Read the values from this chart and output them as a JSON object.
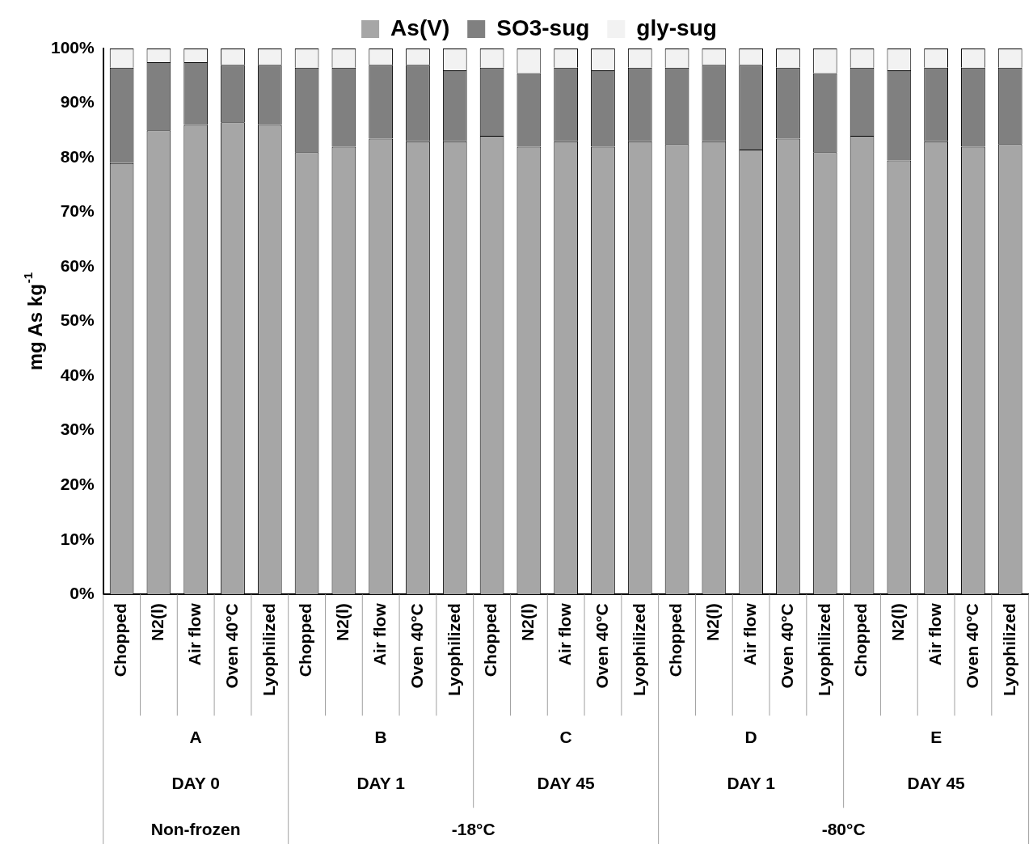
{
  "chart_data": {
    "type": "bar",
    "stacked": true,
    "ylabel": "mg As kg$^{-1}$",
    "categories": [
      "Chopped",
      "N2(l)",
      "Air flow",
      "Oven 40°C",
      "Lyophilized",
      "Chopped",
      "N2(l)",
      "Air flow",
      "Oven 40°C",
      "Lyophilized",
      "Chopped",
      "N2(l)",
      "Air flow",
      "Oven 40°C",
      "Lyophilized",
      "Chopped",
      "N2(l)",
      "Air flow",
      "Oven 40°C",
      "Lyophilized",
      "Chopped",
      "N2(l)",
      "Air flow",
      "Oven 40°C",
      "Lyophilized"
    ],
    "series": [
      {
        "name": "As(V)",
        "color": "#a6a6a6",
        "values": [
          79,
          85,
          86,
          86.5,
          86,
          81,
          82,
          83.5,
          83,
          83,
          84,
          82,
          83,
          82,
          83,
          82.5,
          83,
          81.5,
          83.5,
          81,
          84,
          79.5,
          83,
          82,
          82.5
        ]
      },
      {
        "name": "SO3-sug",
        "color": "#808080",
        "values": [
          17.5,
          12.5,
          11.5,
          10.5,
          11,
          15.5,
          14.5,
          13.5,
          14,
          13,
          12.5,
          13.5,
          13.5,
          14,
          13.5,
          14,
          14,
          15.5,
          13,
          14.5,
          12.5,
          16.5,
          13.5,
          14.5,
          14
        ]
      },
      {
        "name": "gly-sug",
        "color": "#f2f2f2",
        "values": [
          3.5,
          2.5,
          2.5,
          3,
          3,
          3.5,
          3.5,
          3,
          3,
          4,
          3.5,
          4.5,
          3.5,
          4,
          3.5,
          3.5,
          3,
          3,
          3.5,
          4.5,
          3.5,
          4,
          3.5,
          3.5,
          3.5
        ]
      }
    ],
    "ylim": [
      0,
      100
    ],
    "yticks": [
      {
        "value": 0,
        "label": "0%"
      },
      {
        "value": 10,
        "label": "10%"
      },
      {
        "value": 20,
        "label": "20%"
      },
      {
        "value": 30,
        "label": "30%"
      },
      {
        "value": 40,
        "label": "40%"
      },
      {
        "value": 50,
        "label": "50%"
      },
      {
        "value": 60,
        "label": "60%"
      },
      {
        "value": 70,
        "label": "70%"
      },
      {
        "value": 80,
        "label": "80%"
      },
      {
        "value": 90,
        "label": "90%"
      },
      {
        "value": 100,
        "label": "100%"
      }
    ],
    "legend": "top",
    "grid": false,
    "annotations": [
      "A",
      "B",
      "C",
      "D",
      "E",
      "DAY 0",
      "DAY 1",
      "DAY 45",
      "DAY 1",
      "DAY 45",
      "Non-frozen",
      "-18°C",
      "-80°C"
    ]
  }
}
